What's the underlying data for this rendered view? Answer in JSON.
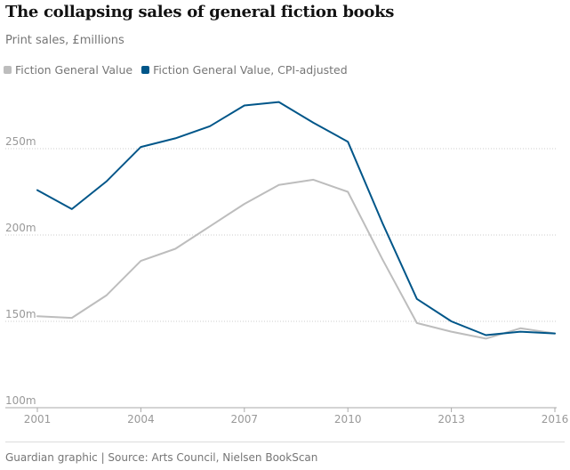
{
  "header": {
    "title": "The collapsing sales of general fiction books",
    "subtitle": "Print sales, £millions"
  },
  "footer": {
    "source": "Guardian graphic | Source: Arts Council, Nielsen BookScan"
  },
  "colors": {
    "nominal": "#bdbdbd",
    "adjusted": "#005689",
    "grid": "#cccccc",
    "axis_text": "#999999"
  },
  "chart_data": {
    "type": "line",
    "x": [
      2001,
      2002,
      2003,
      2004,
      2005,
      2006,
      2007,
      2008,
      2009,
      2010,
      2011,
      2012,
      2013,
      2014,
      2015,
      2016
    ],
    "series": [
      {
        "name": "Fiction General Value",
        "values": [
          153,
          152,
          165,
          185,
          192,
          205,
          218,
          229,
          232,
          225,
          186,
          149,
          144,
          140,
          146,
          143
        ]
      },
      {
        "name": "Fiction General Value, CPI-adjusted",
        "values": [
          226,
          215,
          231,
          251,
          256,
          263,
          275,
          277,
          265,
          254,
          207,
          163,
          150,
          142,
          144,
          143
        ]
      }
    ],
    "yticks": [
      {
        "value": 100,
        "label": "100m"
      },
      {
        "value": 150,
        "label": "150m"
      },
      {
        "value": 200,
        "label": "200m"
      },
      {
        "value": 250,
        "label": "250m"
      }
    ],
    "xticks": [
      2001,
      2004,
      2007,
      2010,
      2013,
      2016
    ],
    "ylim": [
      100,
      290
    ],
    "xlim": [
      2001,
      2016
    ],
    "grid": true,
    "legend": "top-left"
  }
}
